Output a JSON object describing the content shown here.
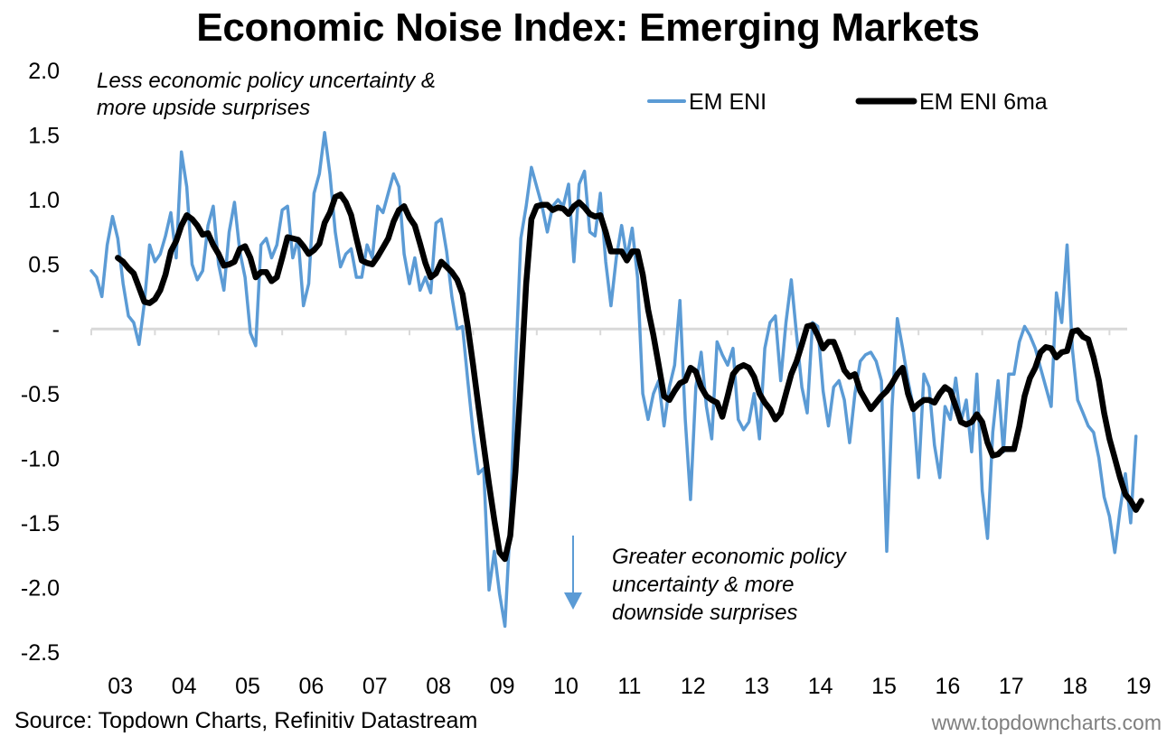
{
  "chart_data": {
    "type": "line",
    "title": "Economic Noise Index: Emerging Markets",
    "xlabel": "",
    "ylabel": "",
    "ylim": [
      -2.5,
      2.0
    ],
    "xlim": [
      "2003-01",
      "2019-04"
    ],
    "yticks": [
      2.0,
      1.5,
      1.0,
      0.5,
      0.0,
      -0.5,
      -1.0,
      -1.5,
      -2.0,
      -2.5
    ],
    "ytick_labels": [
      "2.0",
      "1.5",
      "1.0",
      "0.5",
      "-",
      "-0.5",
      "-1.0",
      "-1.5",
      "-2.0",
      "-2.5"
    ],
    "xtick_labels": [
      "03",
      "04",
      "05",
      "06",
      "07",
      "08",
      "09",
      "10",
      "11",
      "12",
      "13",
      "14",
      "15",
      "16",
      "17",
      "18",
      "19"
    ],
    "grid": false,
    "legend_position": "top-right",
    "start": "2003-01",
    "frequency": "monthly",
    "series": [
      {
        "name": "EM ENI",
        "color": "#5b9bd5",
        "start": "2003-01",
        "values": [
          0.45,
          0.4,
          0.25,
          0.65,
          0.87,
          0.7,
          0.35,
          0.1,
          0.05,
          -0.12,
          0.2,
          0.65,
          0.52,
          0.58,
          0.72,
          0.9,
          0.55,
          1.37,
          1.1,
          0.5,
          0.38,
          0.45,
          0.8,
          0.95,
          0.5,
          0.3,
          0.75,
          0.98,
          0.6,
          0.4,
          -0.03,
          -0.13,
          0.65,
          0.7,
          0.55,
          0.65,
          0.92,
          0.95,
          0.55,
          0.7,
          0.18,
          0.35,
          1.05,
          1.2,
          1.52,
          1.2,
          0.75,
          0.48,
          0.58,
          0.62,
          0.4,
          0.4,
          0.65,
          0.55,
          0.95,
          0.9,
          1.05,
          1.2,
          1.1,
          0.58,
          0.35,
          0.55,
          0.3,
          0.4,
          0.28,
          0.82,
          0.85,
          0.6,
          0.25,
          0.0,
          0.02,
          -0.4,
          -0.8,
          -1.12,
          -1.08,
          -2.02,
          -1.72,
          -2.05,
          -2.3,
          -1.5,
          -0.3,
          0.7,
          0.95,
          1.25,
          1.1,
          0.95,
          0.75,
          0.95,
          1.0,
          0.95,
          1.12,
          0.52,
          1.12,
          1.22,
          0.75,
          0.72,
          1.05,
          0.52,
          0.18,
          0.55,
          0.8,
          0.55,
          0.78,
          0.4,
          -0.5,
          -0.7,
          -0.5,
          -0.4,
          -0.75,
          -0.45,
          -0.28,
          0.22,
          -0.7,
          -1.32,
          -0.45,
          -0.18,
          -0.6,
          -0.85,
          -0.1,
          -0.2,
          -0.28,
          -0.15,
          -0.7,
          -0.78,
          -0.72,
          -0.5,
          -0.85,
          -0.15,
          0.05,
          0.1,
          -0.4,
          0.05,
          0.38,
          -0.05,
          -0.45,
          -0.65,
          0.05,
          0.02,
          -0.48,
          -0.75,
          -0.45,
          -0.4,
          -0.55,
          -0.88,
          -0.5,
          -0.25,
          -0.2,
          -0.18,
          -0.25,
          -0.4,
          -1.72,
          -0.6,
          0.08,
          -0.15,
          -0.4,
          -0.6,
          -1.15,
          -0.35,
          -0.45,
          -0.9,
          -1.15,
          -0.6,
          -0.7,
          -0.38,
          -0.72,
          -0.55,
          -0.95,
          -0.35,
          -1.25,
          -1.62,
          -0.8,
          -0.4,
          -0.95,
          -0.35,
          -0.35,
          -0.1,
          0.02,
          -0.05,
          -0.15,
          -0.3,
          -0.45,
          -0.6,
          0.28,
          0.05,
          0.65,
          -0.15,
          -0.55,
          -0.65,
          -0.75,
          -0.8,
          -1.0,
          -1.3,
          -1.45,
          -1.73,
          -1.4,
          -1.12,
          -1.5,
          -0.83
        ]
      },
      {
        "name": "EM ENI 6ma",
        "color": "#000000",
        "start": "2003-06",
        "values": [
          0.55,
          0.52,
          0.47,
          0.43,
          0.32,
          0.21,
          0.2,
          0.23,
          0.3,
          0.42,
          0.6,
          0.68,
          0.8,
          0.88,
          0.85,
          0.8,
          0.73,
          0.74,
          0.65,
          0.58,
          0.49,
          0.5,
          0.52,
          0.62,
          0.64,
          0.55,
          0.4,
          0.44,
          0.44,
          0.37,
          0.4,
          0.55,
          0.71,
          0.7,
          0.69,
          0.64,
          0.58,
          0.61,
          0.66,
          0.82,
          0.9,
          1.02,
          1.04,
          0.98,
          0.88,
          0.7,
          0.53,
          0.51,
          0.5,
          0.56,
          0.63,
          0.7,
          0.83,
          0.92,
          0.95,
          0.86,
          0.8,
          0.66,
          0.51,
          0.4,
          0.43,
          0.52,
          0.48,
          0.44,
          0.38,
          0.27,
          0.02,
          -0.28,
          -0.6,
          -0.9,
          -1.2,
          -1.48,
          -1.73,
          -1.78,
          -1.6,
          -1.1,
          -0.4,
          0.35,
          0.85,
          0.95,
          0.96,
          0.96,
          0.92,
          0.94,
          0.93,
          0.89,
          0.95,
          0.98,
          0.94,
          0.89,
          0.87,
          0.88,
          0.75,
          0.6,
          0.6,
          0.6,
          0.53,
          0.6,
          0.6,
          0.42,
          0.15,
          -0.05,
          -0.28,
          -0.52,
          -0.55,
          -0.48,
          -0.42,
          -0.4,
          -0.3,
          -0.33,
          -0.45,
          -0.52,
          -0.55,
          -0.57,
          -0.68,
          -0.52,
          -0.35,
          -0.3,
          -0.28,
          -0.3,
          -0.37,
          -0.5,
          -0.57,
          -0.62,
          -0.7,
          -0.65,
          -0.5,
          -0.35,
          -0.25,
          -0.12,
          0.02,
          0.03,
          -0.05,
          -0.15,
          -0.1,
          -0.1,
          -0.2,
          -0.32,
          -0.37,
          -0.35,
          -0.48,
          -0.55,
          -0.62,
          -0.57,
          -0.52,
          -0.48,
          -0.42,
          -0.35,
          -0.3,
          -0.5,
          -0.62,
          -0.58,
          -0.55,
          -0.55,
          -0.57,
          -0.5,
          -0.45,
          -0.48,
          -0.6,
          -0.72,
          -0.74,
          -0.72,
          -0.66,
          -0.72,
          -0.88,
          -0.98,
          -0.97,
          -0.93,
          -0.93,
          -0.93,
          -0.75,
          -0.52,
          -0.38,
          -0.3,
          -0.18,
          -0.14,
          -0.15,
          -0.22,
          -0.18,
          -0.17,
          -0.02,
          -0.01,
          -0.06,
          -0.08,
          -0.22,
          -0.4,
          -0.65,
          -0.85,
          -1.0,
          -1.15,
          -1.28,
          -1.33,
          -1.4,
          -1.33
        ]
      }
    ],
    "annotations": [
      {
        "text_lines": [
          "Less economic policy uncertainty &",
          "more upside surprises"
        ],
        "position": "top-left"
      },
      {
        "text_lines": [
          "Greater economic policy",
          "uncertainty & more",
          "downside surprises"
        ],
        "position": "bottom-center",
        "arrow": "down",
        "arrow_color": "#5b9bd5"
      }
    ]
  },
  "footer": {
    "source": "Source: Topdown Charts, Refinitiv Datastream",
    "website": "www.topdowncharts.com"
  },
  "colors": {
    "axis_line": "#d9d9d9",
    "website_text": "#7f7f7f"
  }
}
